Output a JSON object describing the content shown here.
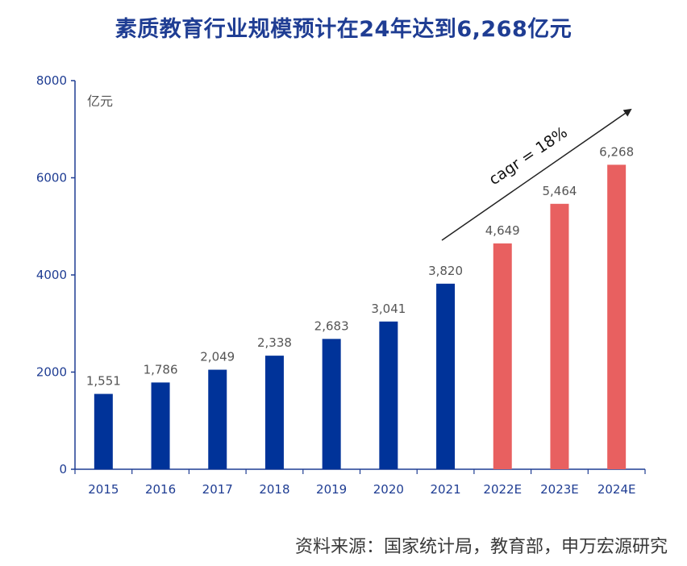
{
  "chart_data": {
    "type": "bar",
    "title": "素质教育行业规模预计在24年达到6,268亿元",
    "unit_label": "亿元",
    "categories": [
      "2015",
      "2016",
      "2017",
      "2018",
      "2019",
      "2020",
      "2021",
      "2022E",
      "2023E",
      "2024E"
    ],
    "values": [
      1551,
      1786,
      2049,
      2338,
      2683,
      3041,
      3820,
      4649,
      5464,
      6268
    ],
    "data_labels": [
      "1,551",
      "1,786",
      "2,049",
      "2,338",
      "2,683",
      "3,041",
      "3,820",
      "4,649",
      "5,464",
      "6,268"
    ],
    "bar_colors": [
      "#003399",
      "#003399",
      "#003399",
      "#003399",
      "#003399",
      "#003399",
      "#003399",
      "#e86060",
      "#e86060",
      "#e86060"
    ],
    "ylim": [
      0,
      8000
    ],
    "yticks": [
      "0",
      "2000",
      "4000",
      "6000",
      "8000"
    ],
    "xlabel": "",
    "ylabel": "",
    "annotation": "cagr = 18%",
    "grid": false
  },
  "source_text": "资料来源：国家统计局，教育部，申万宏源研究",
  "colors": {
    "title": "#1f3d93",
    "axis": "#1f3d93",
    "actual": "#003399",
    "forecast": "#e86060"
  }
}
